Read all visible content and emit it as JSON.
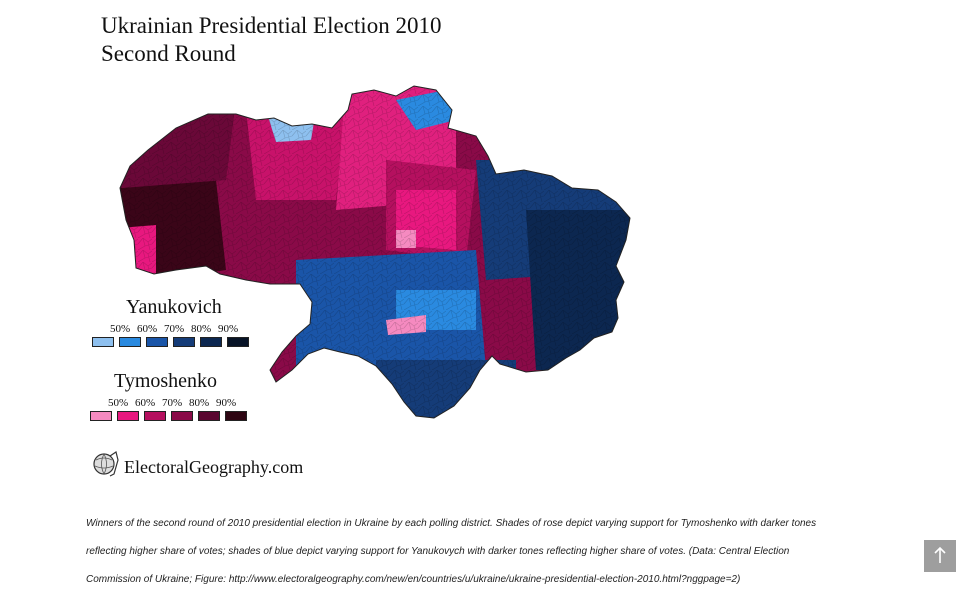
{
  "title": {
    "line1": "Ukrainian Presidential Election 2010",
    "line2": "Second Round"
  },
  "legend": {
    "yanukovich": {
      "label": "Yanukovich",
      "ticks": [
        "50%",
        "60%",
        "70%",
        "80%",
        "90%"
      ],
      "colors": [
        "#8ec0ef",
        "#2a8ae0",
        "#1a55a8",
        "#153c78",
        "#0c2750",
        "#071326"
      ]
    },
    "tymoshenko": {
      "label": "Tymoshenko",
      "ticks": [
        "50%",
        "60%",
        "70%",
        "80%",
        "90%"
      ],
      "colors": [
        "#f58ac0",
        "#e8187f",
        "#b5105f",
        "#8a0a48",
        "#5a0630",
        "#2e0512"
      ]
    }
  },
  "brand": {
    "name": "ElectoralGeography.com",
    "icon": "globe-logo-icon"
  },
  "caption": {
    "line1": "Winners of the second round of 2010 presidential election in Ukraine by each polling district. Shades of rose depict varying support for Tymoshenko with darker tones",
    "line2": "reflecting higher share of votes; shades of blue depict varying support for Yanukovych with darker tones reflecting higher share of votes. (Data: Central Election",
    "line3": "Commission of Ukraine; Figure: http://www.electoralgeography.com/new/en/countries/u/ukraine/ukraine-presidential-election-2010.html?nggpage=2)"
  },
  "scroll_top": {
    "icon": "arrow-up-icon"
  }
}
